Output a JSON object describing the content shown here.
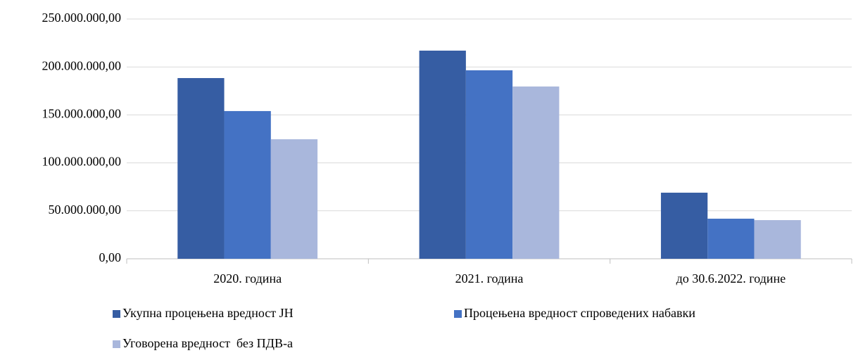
{
  "chart_data": {
    "type": "bar",
    "categories": [
      "2020. година",
      "2021. година",
      "до 30.6.2022. године"
    ],
    "series": [
      {
        "name": "Укупна процењена вредност ЈН",
        "color": "#365da3",
        "values": [
          188400000,
          217000000,
          68900000
        ]
      },
      {
        "name": "Процењена вредност спроведених набавки",
        "color": "#4472c4",
        "values": [
          154000000,
          196500000,
          41800000
        ]
      },
      {
        "name": "Уговорена вредност  без ПДВ-а",
        "color": "#a9b7dc",
        "values": [
          124600000,
          179600000,
          40300000
        ]
      }
    ],
    "ylim": [
      0,
      250000000
    ],
    "yticks": [
      {
        "value": 0,
        "label": "0,00"
      },
      {
        "value": 50000000,
        "label": "50.000.000,00"
      },
      {
        "value": 100000000,
        "label": "100.000.000,00"
      },
      {
        "value": 150000000,
        "label": "150.000.000,00"
      },
      {
        "value": 200000000,
        "label": "200.000.000,00"
      },
      {
        "value": 250000000,
        "label": "250.000.000,00"
      }
    ],
    "grid": true,
    "legend": "bottom"
  }
}
